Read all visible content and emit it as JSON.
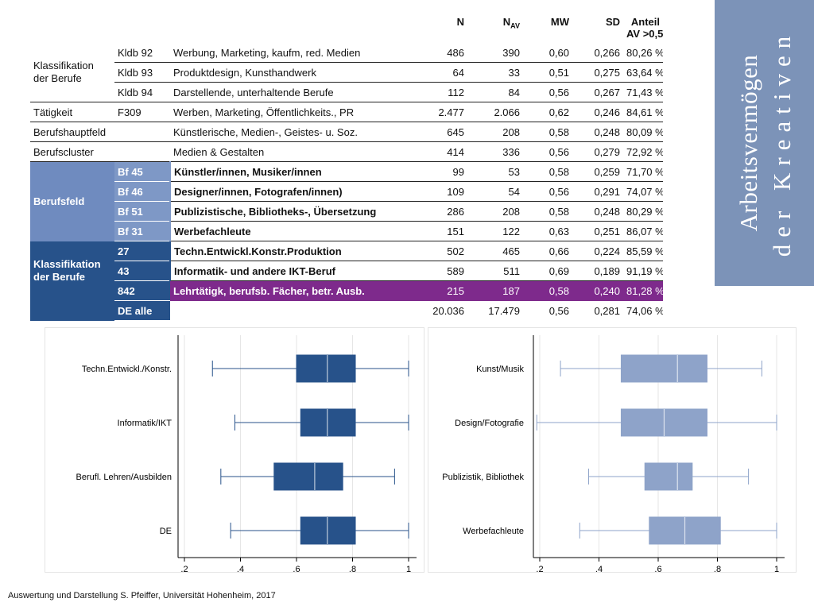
{
  "table": {
    "headers": {
      "n": "N",
      "nav_main": "N",
      "nav_sub": "AV",
      "mw": "MW",
      "sd": "SD",
      "anteil_line1": "Anteil",
      "anteil_line2": "AV >0,5"
    },
    "rows": [
      {
        "group": "Klassifikation der Berufe",
        "code": "Kldb 92",
        "label": "Werbung, Marketing, kaufm, red. Medien",
        "n": "486",
        "nav": "390",
        "mw": "0,60",
        "sd": "0,266",
        "anteil": "80,26 %"
      },
      {
        "group": "",
        "code": "Kldb 93",
        "label": "Produktdesign, Kunsthandwerk",
        "n": "64",
        "nav": "33",
        "mw": "0,51",
        "sd": "0,275",
        "anteil": "63,64 %"
      },
      {
        "group": "",
        "code": "Kldb 94",
        "label": "Darstellende, unterhaltende Berufe",
        "n": "112",
        "nav": "84",
        "mw": "0,56",
        "sd": "0,267",
        "anteil": "71,43 %"
      },
      {
        "group": "Tätigkeit",
        "code": "F309",
        "label": "Werben, Marketing, Öffentlichkeits., PR",
        "n": "2.477",
        "nav": "2.066",
        "mw": "0,62",
        "sd": "0,246",
        "anteil": "84,61 %"
      },
      {
        "group": "Berufshauptfeld",
        "code": "",
        "label": "Künstlerische, Medien-, Geistes- u. Soz.",
        "n": "645",
        "nav": "208",
        "mw": "0,58",
        "sd": "0,248",
        "anteil": "80,09 %"
      },
      {
        "group": "Berufscluster",
        "code": "",
        "label": "Medien & Gestalten",
        "n": "414",
        "nav": "336",
        "mw": "0,56",
        "sd": "0,279",
        "anteil": "72,92 %"
      },
      {
        "group": "Berufsfeld",
        "code": "Bf 45",
        "label": "Künstler/innen, Musiker/innen",
        "n": "99",
        "nav": "53",
        "mw": "0,58",
        "sd": "0,259",
        "anteil": "71,70 %"
      },
      {
        "group": "",
        "code": "Bf 46",
        "label": "Designer/innen, Fotografen/innen)",
        "n": "109",
        "nav": "54",
        "mw": "0,56",
        "sd": "0,291",
        "anteil": "74,07 %"
      },
      {
        "group": "",
        "code": "Bf 51",
        "label": "Publizistische, Bibliotheks-, Übersetzung",
        "n": "286",
        "nav": "208",
        "mw": "0,58",
        "sd": "0,248",
        "anteil": "80,29 %"
      },
      {
        "group": "",
        "code": "Bf 31",
        "label": "Werbefachleute",
        "n": "151",
        "nav": "122",
        "mw": "0,63",
        "sd": "0,251",
        "anteil": "86,07 %"
      },
      {
        "group": "Klassifikation der Berufe",
        "code": "27",
        "label": "Techn.Entwickl.Konstr.Produktion",
        "n": "502",
        "nav": "465",
        "mw": "0,66",
        "sd": "0,224",
        "anteil": "85,59 %"
      },
      {
        "group": "",
        "code": "43",
        "label": "Informatik- und andere IKT-Beruf",
        "n": "589",
        "nav": "511",
        "mw": "0,69",
        "sd": "0,189",
        "anteil": "91,19 %"
      },
      {
        "group": "",
        "code": "842",
        "label": "Lehrtätigk, berufsb. Fächer, betr. Ausb.",
        "n": "215",
        "nav": "187",
        "mw": "0,58",
        "sd": "0,240",
        "anteil": "81,28 %"
      },
      {
        "group": "",
        "code": "DE alle",
        "label": "",
        "n": "20.036",
        "nav": "17.479",
        "mw": "0,56",
        "sd": "0,281",
        "anteil": "74,06 %"
      }
    ]
  },
  "side_title": {
    "line1": "Arbeitsvermögen",
    "line2": "der Kreativen",
    "background": "#7c93b8"
  },
  "colors": {
    "dark_blue": "#27528a",
    "light_blue": "#7e98c6",
    "highlight_purple": "#7e2a8c"
  },
  "chart_data": [
    {
      "type": "boxplot",
      "orientation": "horizontal",
      "color": "#27528a",
      "categories": [
        "Techn.Entwickl./Konstr.",
        "Informatik/IKT",
        "Berufl. Lehren/Ausbilden",
        "DE"
      ],
      "boxes": [
        {
          "whisker_low": 0.3,
          "q1": 0.6,
          "median": 0.71,
          "q3": 0.81,
          "whisker_high": 1.0
        },
        {
          "whisker_low": 0.38,
          "q1": 0.615,
          "median": 0.71,
          "q3": 0.81,
          "whisker_high": 1.0
        },
        {
          "whisker_low": 0.33,
          "q1": 0.52,
          "median": 0.665,
          "q3": 0.765,
          "whisker_high": 0.95
        },
        {
          "whisker_low": 0.365,
          "q1": 0.615,
          "median": 0.71,
          "q3": 0.81,
          "whisker_high": 1.0
        }
      ],
      "xlim": [
        0.2,
        1.0
      ],
      "xticks": [
        ".2",
        ".4",
        ".6",
        ".8",
        "1"
      ],
      "grid": true
    },
    {
      "type": "boxplot",
      "orientation": "horizontal",
      "color": "#8ea3c9",
      "categories": [
        "Kunst/Musik",
        "Design/Fotografie",
        "Publizistik, Bibliothek",
        "Werbefachleute"
      ],
      "boxes": [
        {
          "whisker_low": 0.27,
          "q1": 0.475,
          "median": 0.665,
          "q3": 0.765,
          "whisker_high": 0.95
        },
        {
          "whisker_low": 0.19,
          "q1": 0.475,
          "median": 0.62,
          "q3": 0.765,
          "whisker_high": 1.0
        },
        {
          "whisker_low": 0.365,
          "q1": 0.555,
          "median": 0.665,
          "q3": 0.715,
          "whisker_high": 0.905
        },
        {
          "whisker_low": 0.335,
          "q1": 0.57,
          "median": 0.69,
          "q3": 0.81,
          "whisker_high": 1.0
        }
      ],
      "xlim": [
        0.2,
        1.0
      ],
      "xticks": [
        ".2",
        ".4",
        ".6",
        ".8",
        "1"
      ],
      "grid": true
    }
  ],
  "footer": "Auswertung und Darstellung S. Pfeiffer, Universität Hohenheim, 2017"
}
